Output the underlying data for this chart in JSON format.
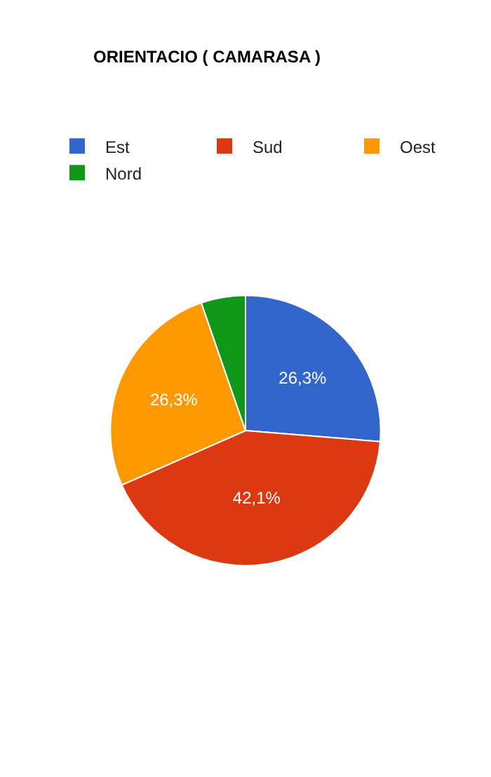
{
  "chart_data": {
    "type": "pie",
    "title": "ORIENTACIO ( CAMARASA )",
    "categories": [
      "Est",
      "Sud",
      "Oest",
      "Nord"
    ],
    "values": [
      26.3,
      42.1,
      26.3,
      5.3
    ],
    "colors": [
      "#3366cc",
      "#dc3912",
      "#ff9900",
      "#109618"
    ],
    "value_labels": [
      "26,3%",
      "42,1%",
      "26,3%",
      null
    ],
    "legend": "top left"
  }
}
